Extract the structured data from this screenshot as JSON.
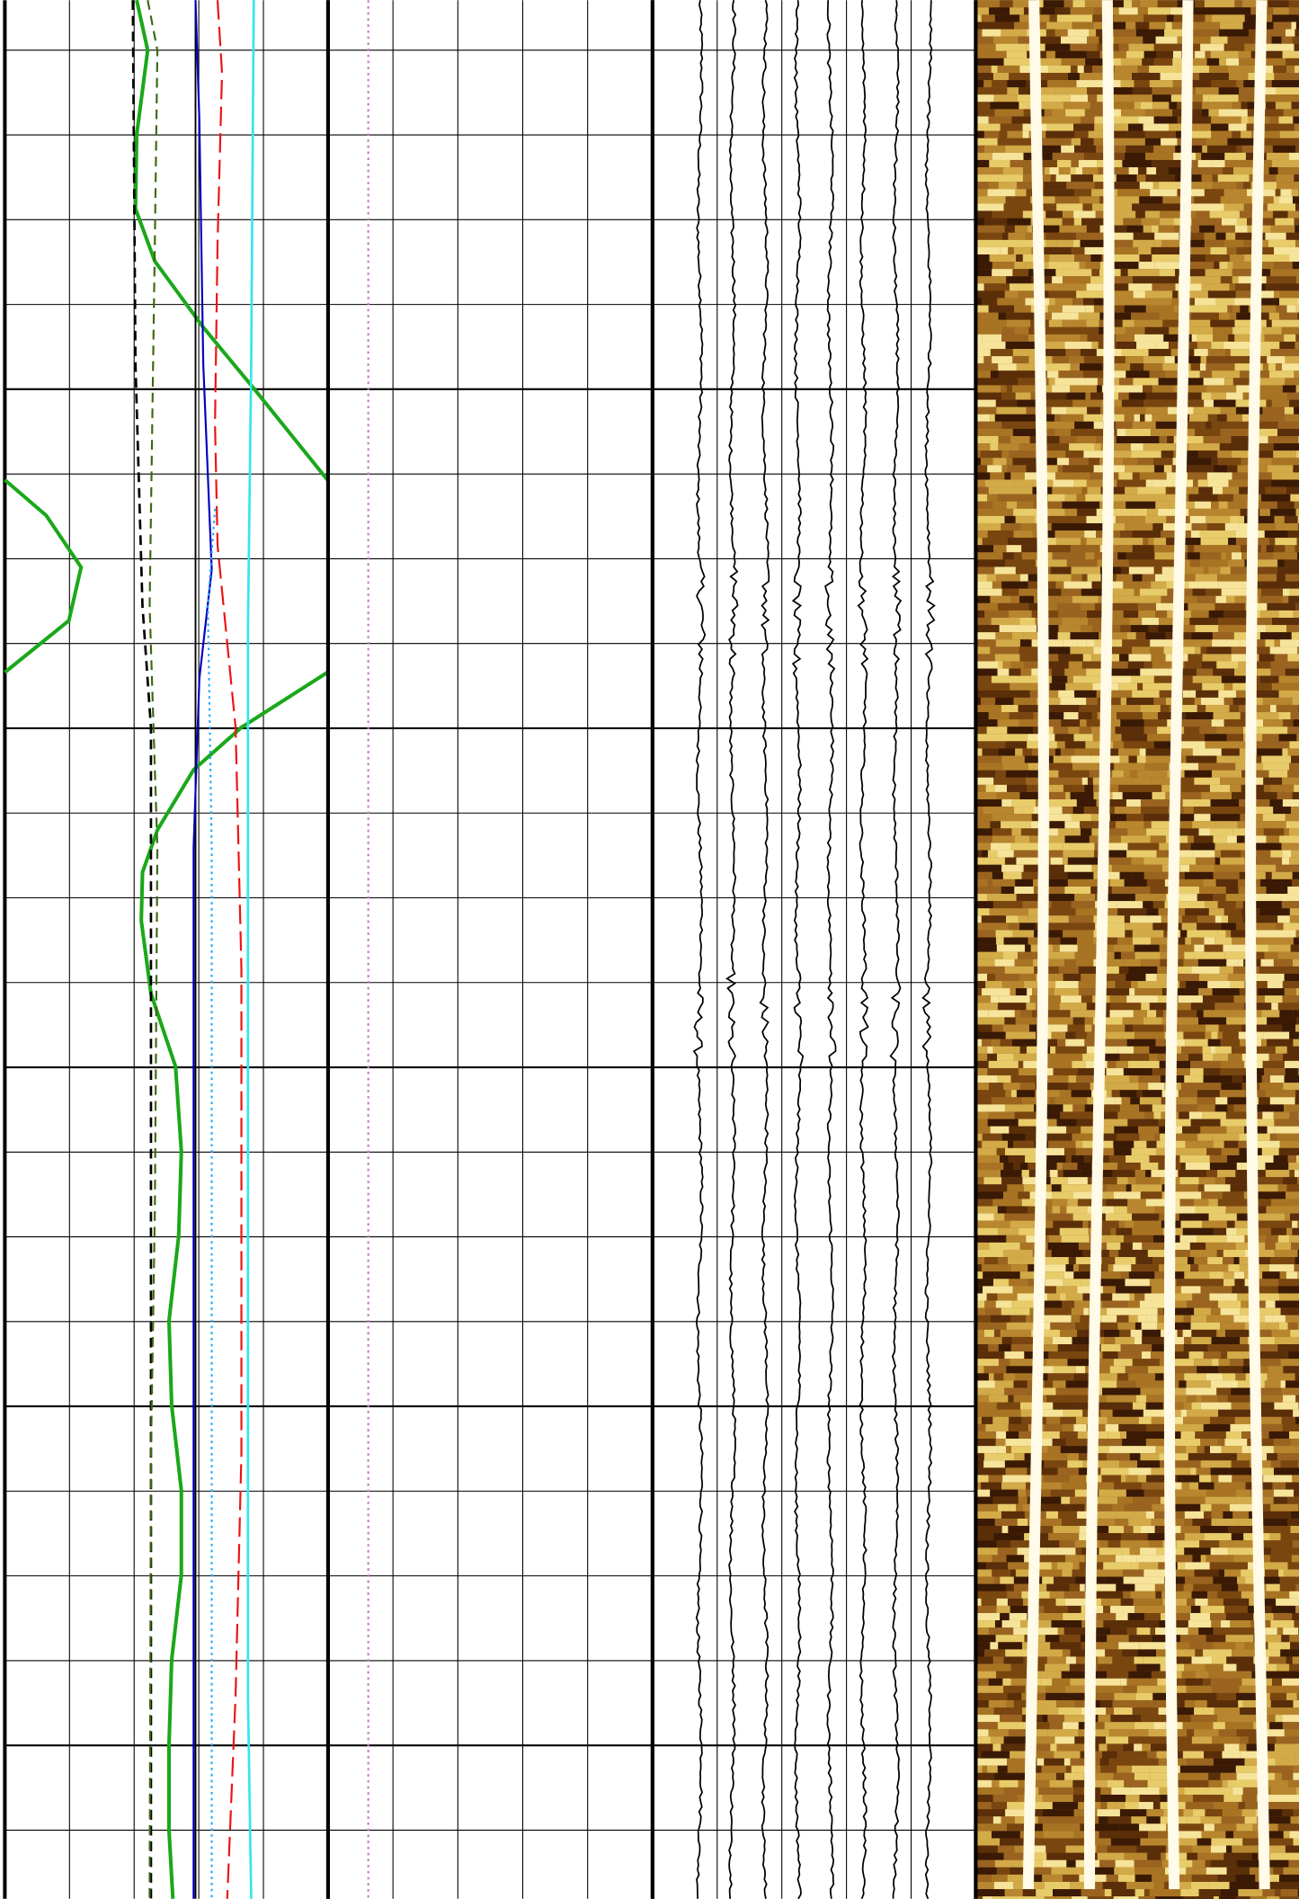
{
  "chart_data": [
    {
      "type": "log-track",
      "xlim": [
        0,
        5
      ],
      "xticks": [
        0,
        1,
        2,
        3,
        4,
        5
      ],
      "ylim": [
        -0.59,
        21.81
      ],
      "yticks": [
        0,
        1,
        2,
        3,
        4,
        5,
        6,
        7,
        8,
        9,
        10,
        11,
        12,
        13,
        14,
        15,
        16,
        17,
        18,
        19,
        20,
        21
      ],
      "major_yticks": [
        4,
        8,
        12,
        16,
        20
      ],
      "grid": true,
      "series": [
        {
          "color": "#1aa81a",
          "dash": "solid",
          "width": 3,
          "depth": [
            -0.59,
            0,
            1,
            1.87,
            2.49,
            3.27,
            3.99,
            5.07,
            null,
            5.07,
            5.49,
            6.1,
            6.73,
            7.34,
            null,
            7.34,
            7.99,
            8.49,
            9.2,
            9.7,
            10.27,
            11.13,
            11.99,
            12.99,
            13.99,
            14.99,
            15.99,
            16.99,
            17.99,
            18.99,
            20,
            21,
            21.81
          ],
          "values": [
            2.04,
            2.21,
            2.04,
            2.02,
            2.32,
            3.07,
            3.85,
            4.99,
            null,
            0,
            0.64,
            1.18,
            0.99,
            0,
            null,
            4.99,
            3.66,
            2.92,
            2.36,
            2.13,
            2.11,
            2.26,
            2.64,
            2.73,
            2.69,
            2.54,
            2.58,
            2.73,
            2.73,
            2.58,
            2.54,
            2.54,
            2.6
          ]
        },
        {
          "color": "#000000",
          "dash": "dashed",
          "width": 2,
          "depth": [
            -0.59,
            3.7,
            6.56,
            7.99,
            21.81
          ],
          "values": [
            1.98,
            2.02,
            2.13,
            2.26,
            2.26
          ]
        },
        {
          "color": "#3a6a10",
          "dash": "dashed",
          "width": 1.6,
          "depth": [
            -0.59,
            0,
            2.27,
            6.56,
            9.41,
            13.7,
            16.56,
            21.81
          ],
          "values": [
            2.21,
            2.36,
            2.32,
            2.24,
            2.36,
            2.32,
            2.26,
            2.24
          ]
        },
        {
          "color": "#000000",
          "dash": "solid",
          "width": 1.4,
          "depth": [
            -0.59,
            21.81
          ],
          "values": [
            2.95,
            2.95
          ]
        },
        {
          "color": "#0000c0",
          "dash": "solid",
          "width": 1.6,
          "depth": [
            -0.59,
            0.84,
            3.7,
            6.13,
            7.41,
            9.41,
            21.81
          ],
          "values": [
            2.95,
            3.01,
            3.07,
            3.2,
            3.01,
            2.92,
            2.92
          ]
        },
        {
          "color": "#ee1111",
          "dash": "longdash",
          "width": 1.6,
          "depth": [
            -0.59,
            0.27,
            2.27,
            4.41,
            5.84,
            7.99,
            10.84,
            16.56,
            19.41,
            21.81
          ],
          "values": [
            3.29,
            3.36,
            3.29,
            3.25,
            3.29,
            3.57,
            3.66,
            3.66,
            3.57,
            3.44
          ]
        },
        {
          "color": "#22aaff",
          "dash": "dotted",
          "width": 1.6,
          "depth": [
            5.41,
            6.56,
            9.41,
            19.41,
            21.81
          ],
          "values": [
            3.25,
            3.14,
            3.2,
            3.2,
            3.2
          ]
        },
        {
          "color": "#33e6f0",
          "dash": "solid",
          "width": 2,
          "depth": [
            -0.59,
            3.7,
            6.84,
            19.41,
            21.81
          ],
          "values": [
            3.85,
            3.81,
            3.76,
            3.76,
            3.81
          ]
        },
        {
          "color": "#1a8a8a",
          "dash": "solid",
          "width": 1.4,
          "depth": [
            -0.59,
            21.81
          ],
          "values": [
            5,
            5
          ]
        }
      ]
    },
    {
      "type": "log-track",
      "xlim": [
        0,
        5
      ],
      "xticks": [
        0,
        1,
        2,
        3,
        4,
        5
      ],
      "ylim": [
        -0.59,
        21.81
      ],
      "yticks": [
        0,
        1,
        2,
        3,
        4,
        5,
        6,
        7,
        8,
        9,
        10,
        11,
        12,
        13,
        14,
        15,
        16,
        17,
        18,
        19,
        20,
        21
      ],
      "major_yticks": [
        4,
        8,
        12,
        16,
        20
      ],
      "grid": true,
      "series": [
        {
          "color": "#cc77cc",
          "dash": "dotted",
          "width": 1.6,
          "depth": [
            -0.59,
            21.81
          ],
          "values": [
            0.62,
            0.62
          ]
        }
      ]
    },
    {
      "type": "waveform",
      "xlim": [
        0,
        5
      ],
      "xticks": [
        0,
        1,
        2,
        3,
        4,
        5
      ],
      "ylim": [
        -0.59,
        21.81
      ],
      "yticks": [
        0,
        1,
        2,
        3,
        4,
        5,
        6,
        7,
        8,
        9,
        10,
        11,
        12,
        13,
        14,
        15,
        16,
        17,
        18,
        19,
        20,
        21
      ],
      "major_yticks": [
        4,
        8,
        12,
        16,
        20
      ],
      "grid": true
    },
    {
      "type": "image"
    }
  ]
}
